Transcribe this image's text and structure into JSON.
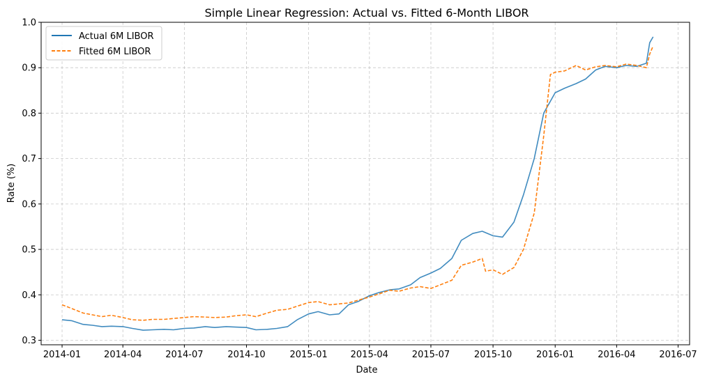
{
  "chart_data": {
    "type": "line",
    "title": "Simple Linear Regression: Actual vs. Fitted 6-Month LIBOR",
    "xlabel": "Date",
    "ylabel": "Rate (%)",
    "x_ticks": [
      "2014-01",
      "2014-04",
      "2014-07",
      "2014-10",
      "2015-01",
      "2015-04",
      "2015-07",
      "2015-10",
      "2016-01",
      "2016-04",
      "2016-07"
    ],
    "y_ticks": [
      "0.3",
      "0.4",
      "0.5",
      "0.6",
      "0.7",
      "0.8",
      "0.9",
      "1.0"
    ],
    "xlim": [
      "2013-12-01",
      "2016-07-18"
    ],
    "ylim": [
      0.29,
      1.0
    ],
    "grid": true,
    "legend_position": "top-left",
    "series": [
      {
        "name": "Actual 6M LIBOR",
        "color": "#1f77b4",
        "style": "solid",
        "points": [
          [
            "2014-01-01",
            0.345
          ],
          [
            "2014-01-15",
            0.343
          ],
          [
            "2014-02-01",
            0.335
          ],
          [
            "2014-02-15",
            0.333
          ],
          [
            "2014-03-01",
            0.33
          ],
          [
            "2014-03-15",
            0.331
          ],
          [
            "2014-04-01",
            0.33
          ],
          [
            "2014-04-15",
            0.326
          ],
          [
            "2014-05-01",
            0.322
          ],
          [
            "2014-05-15",
            0.323
          ],
          [
            "2014-06-01",
            0.324
          ],
          [
            "2014-06-15",
            0.323
          ],
          [
            "2014-07-01",
            0.326
          ],
          [
            "2014-07-15",
            0.327
          ],
          [
            "2014-08-01",
            0.33
          ],
          [
            "2014-08-15",
            0.328
          ],
          [
            "2014-09-01",
            0.33
          ],
          [
            "2014-09-15",
            0.329
          ],
          [
            "2014-10-01",
            0.328
          ],
          [
            "2014-10-15",
            0.323
          ],
          [
            "2014-11-01",
            0.324
          ],
          [
            "2014-11-15",
            0.326
          ],
          [
            "2014-12-01",
            0.33
          ],
          [
            "2014-12-15",
            0.345
          ],
          [
            "2015-01-01",
            0.358
          ],
          [
            "2015-01-15",
            0.363
          ],
          [
            "2015-02-01",
            0.356
          ],
          [
            "2015-02-15",
            0.358
          ],
          [
            "2015-03-01",
            0.378
          ],
          [
            "2015-03-15",
            0.385
          ],
          [
            "2015-04-01",
            0.398
          ],
          [
            "2015-04-15",
            0.405
          ],
          [
            "2015-05-01",
            0.411
          ],
          [
            "2015-05-15",
            0.413
          ],
          [
            "2015-06-01",
            0.422
          ],
          [
            "2015-06-15",
            0.438
          ],
          [
            "2015-07-01",
            0.448
          ],
          [
            "2015-07-15",
            0.458
          ],
          [
            "2015-08-01",
            0.48
          ],
          [
            "2015-08-15",
            0.52
          ],
          [
            "2015-09-01",
            0.535
          ],
          [
            "2015-09-15",
            0.54
          ],
          [
            "2015-10-01",
            0.53
          ],
          [
            "2015-10-15",
            0.527
          ],
          [
            "2015-11-01",
            0.56
          ],
          [
            "2015-11-15",
            0.62
          ],
          [
            "2015-12-01",
            0.7
          ],
          [
            "2015-12-15",
            0.8
          ],
          [
            "2016-01-01",
            0.845
          ],
          [
            "2016-01-15",
            0.855
          ],
          [
            "2016-02-01",
            0.865
          ],
          [
            "2016-02-15",
            0.875
          ],
          [
            "2016-03-01",
            0.895
          ],
          [
            "2016-03-15",
            0.903
          ],
          [
            "2016-04-01",
            0.9
          ],
          [
            "2016-04-15",
            0.905
          ],
          [
            "2016-05-01",
            0.903
          ],
          [
            "2016-05-15",
            0.91
          ],
          [
            "2016-05-20",
            0.955
          ],
          [
            "2016-05-25",
            0.968
          ]
        ]
      },
      {
        "name": "Fitted 6M LIBOR",
        "color": "#ff7f0e",
        "style": "dashed",
        "points": [
          [
            "2014-01-01",
            0.378
          ],
          [
            "2014-01-15",
            0.37
          ],
          [
            "2014-02-01",
            0.36
          ],
          [
            "2014-02-15",
            0.356
          ],
          [
            "2014-03-01",
            0.352
          ],
          [
            "2014-03-15",
            0.355
          ],
          [
            "2014-04-01",
            0.35
          ],
          [
            "2014-04-15",
            0.345
          ],
          [
            "2014-05-01",
            0.344
          ],
          [
            "2014-05-15",
            0.346
          ],
          [
            "2014-06-01",
            0.346
          ],
          [
            "2014-06-15",
            0.348
          ],
          [
            "2014-07-01",
            0.35
          ],
          [
            "2014-07-15",
            0.352
          ],
          [
            "2014-08-01",
            0.351
          ],
          [
            "2014-08-15",
            0.35
          ],
          [
            "2014-09-01",
            0.351
          ],
          [
            "2014-09-15",
            0.354
          ],
          [
            "2014-10-01",
            0.356
          ],
          [
            "2014-10-15",
            0.352
          ],
          [
            "2014-11-01",
            0.36
          ],
          [
            "2014-11-15",
            0.366
          ],
          [
            "2014-12-01",
            0.368
          ],
          [
            "2014-12-15",
            0.375
          ],
          [
            "2015-01-01",
            0.383
          ],
          [
            "2015-01-15",
            0.385
          ],
          [
            "2015-02-01",
            0.378
          ],
          [
            "2015-02-15",
            0.38
          ],
          [
            "2015-03-01",
            0.382
          ],
          [
            "2015-03-15",
            0.388
          ],
          [
            "2015-04-01",
            0.395
          ],
          [
            "2015-04-15",
            0.402
          ],
          [
            "2015-05-01",
            0.41
          ],
          [
            "2015-05-15",
            0.408
          ],
          [
            "2015-06-01",
            0.415
          ],
          [
            "2015-06-15",
            0.418
          ],
          [
            "2015-07-01",
            0.414
          ],
          [
            "2015-07-15",
            0.422
          ],
          [
            "2015-08-01",
            0.432
          ],
          [
            "2015-08-15",
            0.465
          ],
          [
            "2015-09-01",
            0.472
          ],
          [
            "2015-09-15",
            0.48
          ],
          [
            "2015-09-20",
            0.452
          ],
          [
            "2015-10-01",
            0.455
          ],
          [
            "2015-10-15",
            0.445
          ],
          [
            "2015-11-01",
            0.46
          ],
          [
            "2015-11-15",
            0.5
          ],
          [
            "2015-12-01",
            0.58
          ],
          [
            "2015-12-15",
            0.75
          ],
          [
            "2015-12-25",
            0.885
          ],
          [
            "2016-01-01",
            0.89
          ],
          [
            "2016-01-15",
            0.893
          ],
          [
            "2016-02-01",
            0.905
          ],
          [
            "2016-02-15",
            0.895
          ],
          [
            "2016-03-01",
            0.902
          ],
          [
            "2016-03-15",
            0.905
          ],
          [
            "2016-04-01",
            0.902
          ],
          [
            "2016-04-15",
            0.908
          ],
          [
            "2016-05-01",
            0.905
          ],
          [
            "2016-05-15",
            0.9
          ],
          [
            "2016-05-20",
            0.93
          ],
          [
            "2016-05-25",
            0.948
          ]
        ]
      }
    ]
  }
}
